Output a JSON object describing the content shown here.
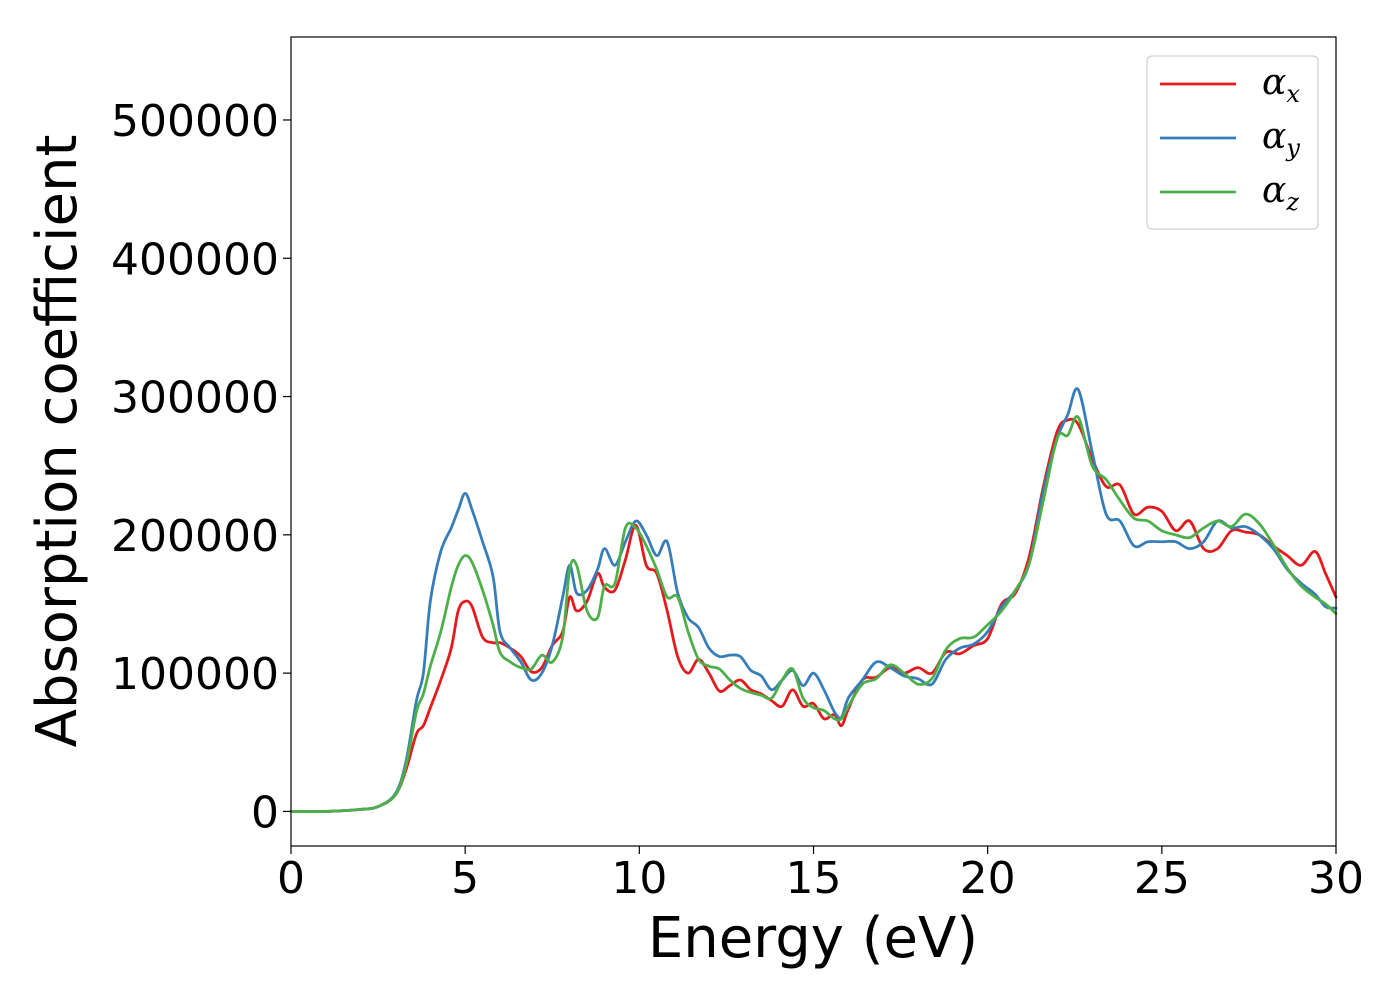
{
  "chart_data": {
    "type": "line",
    "xlabel": "Energy (eV)",
    "ylabel": "Absorption coefficient",
    "xlim": [
      0,
      30
    ],
    "ylim": [
      -25000,
      560000
    ],
    "xticks": [
      0,
      5,
      10,
      15,
      20,
      25,
      30
    ],
    "xtick_labels": [
      "0",
      "5",
      "10",
      "15",
      "20",
      "25",
      "30"
    ],
    "yticks": [
      0,
      100000,
      200000,
      300000,
      400000,
      500000
    ],
    "ytick_labels": [
      "0",
      "100000",
      "200000",
      "300000",
      "400000",
      "500000"
    ],
    "grid": false,
    "legend_position": "top-right",
    "series": [
      {
        "name": "α",
        "subscript": "x",
        "color": "#e41a1c",
        "x": [
          0,
          1,
          2,
          2.5,
          3,
          3.3,
          3.6,
          3.8,
          4.0,
          4.3,
          4.6,
          4.8,
          5.0,
          5.2,
          5.5,
          5.8,
          6.0,
          6.3,
          6.6,
          6.9,
          7.2,
          7.5,
          7.8,
          8.0,
          8.2,
          8.5,
          8.8,
          9.0,
          9.3,
          9.6,
          9.9,
          10.2,
          10.5,
          10.8,
          11.1,
          11.4,
          11.7,
          12.0,
          12.3,
          12.6,
          12.9,
          13.2,
          13.5,
          13.8,
          14.1,
          14.4,
          14.7,
          15.0,
          15.3,
          15.6,
          15.8,
          16.0,
          16.4,
          16.8,
          17.2,
          17.6,
          18.0,
          18.4,
          18.8,
          19.2,
          19.6,
          20.0,
          20.4,
          20.8,
          21.2,
          21.6,
          22.0,
          22.3,
          22.6,
          23.0,
          23.4,
          23.8,
          24.2,
          24.6,
          25.0,
          25.4,
          25.8,
          26.2,
          26.6,
          27.0,
          27.4,
          27.8,
          28.2,
          28.6,
          29.0,
          29.4,
          29.7,
          30.0
        ],
        "y": [
          0,
          0,
          1500,
          3500,
          12000,
          30000,
          56000,
          62000,
          75000,
          95000,
          118000,
          145000,
          152000,
          148000,
          126000,
          122000,
          122000,
          118000,
          112000,
          101000,
          104000,
          120000,
          130000,
          155000,
          145000,
          152000,
          172000,
          162000,
          160000,
          182000,
          207000,
          178000,
          172000,
          145000,
          112000,
          100000,
          110000,
          100000,
          87000,
          91000,
          95000,
          88000,
          85000,
          80000,
          76000,
          88000,
          76000,
          78000,
          67000,
          70000,
          62000,
          74000,
          95000,
          97000,
          104000,
          100000,
          104000,
          100000,
          115000,
          114000,
          120000,
          125000,
          150000,
          158000,
          185000,
          235000,
          275000,
          283000,
          280000,
          255000,
          235000,
          236000,
          215000,
          220000,
          217000,
          203000,
          210000,
          190000,
          190000,
          203000,
          202000,
          200000,
          192000,
          185000,
          178000,
          188000,
          172000,
          155000
        ]
      },
      {
        "name": "α",
        "subscript": "y",
        "color": "#377eb8",
        "x": [
          0,
          1,
          2,
          2.5,
          3,
          3.3,
          3.6,
          3.8,
          4.0,
          4.3,
          4.6,
          4.8,
          5.0,
          5.2,
          5.5,
          5.8,
          6.0,
          6.3,
          6.6,
          6.9,
          7.2,
          7.5,
          7.8,
          8.0,
          8.2,
          8.5,
          8.8,
          9.0,
          9.3,
          9.6,
          9.9,
          10.2,
          10.5,
          10.8,
          11.1,
          11.4,
          11.7,
          12.0,
          12.3,
          12.6,
          12.9,
          13.2,
          13.5,
          13.8,
          14.1,
          14.4,
          14.7,
          15.0,
          15.3,
          15.6,
          15.8,
          16.0,
          16.4,
          16.8,
          17.2,
          17.6,
          18.0,
          18.4,
          18.8,
          19.2,
          19.6,
          20.0,
          20.4,
          20.8,
          21.2,
          21.6,
          22.0,
          22.3,
          22.6,
          23.0,
          23.4,
          23.8,
          24.2,
          24.6,
          25.0,
          25.4,
          25.8,
          26.2,
          26.6,
          27.0,
          27.4,
          27.8,
          28.2,
          28.6,
          29.0,
          29.4,
          29.7,
          30.0
        ],
        "y": [
          0,
          0,
          1500,
          3500,
          13000,
          36000,
          80000,
          100000,
          152000,
          188000,
          205000,
          218000,
          230000,
          218000,
          195000,
          170000,
          130000,
          118000,
          108000,
          95000,
          100000,
          120000,
          155000,
          178000,
          158000,
          160000,
          175000,
          190000,
          178000,
          195000,
          210000,
          200000,
          185000,
          195000,
          158000,
          140000,
          133000,
          118000,
          112000,
          113000,
          112000,
          102000,
          98000,
          88000,
          95000,
          102000,
          91000,
          100000,
          88000,
          72000,
          68000,
          82000,
          95000,
          108000,
          104000,
          98000,
          96000,
          92000,
          110000,
          118000,
          121000,
          130000,
          148000,
          160000,
          180000,
          232000,
          270000,
          287000,
          305000,
          260000,
          215000,
          210000,
          192000,
          195000,
          195000,
          195000,
          190000,
          195000,
          210000,
          205000,
          206000,
          200000,
          190000,
          175000,
          165000,
          157000,
          148000,
          147000
        ]
      },
      {
        "name": "α",
        "subscript": "z",
        "color": "#4daf4a",
        "x": [
          0,
          1,
          2,
          2.5,
          3,
          3.3,
          3.6,
          3.8,
          4.0,
          4.3,
          4.6,
          4.8,
          5.0,
          5.2,
          5.5,
          5.8,
          6.0,
          6.3,
          6.6,
          6.9,
          7.2,
          7.5,
          7.8,
          8.0,
          8.2,
          8.5,
          8.8,
          9.0,
          9.3,
          9.6,
          9.9,
          10.2,
          10.5,
          10.8,
          11.1,
          11.4,
          11.7,
          12.0,
          12.3,
          12.6,
          12.9,
          13.2,
          13.5,
          13.8,
          14.1,
          14.4,
          14.7,
          15.0,
          15.3,
          15.6,
          15.8,
          16.0,
          16.4,
          16.8,
          17.2,
          17.6,
          18.0,
          18.4,
          18.8,
          19.2,
          19.6,
          20.0,
          20.4,
          20.8,
          21.2,
          21.6,
          22.0,
          22.3,
          22.6,
          23.0,
          23.4,
          23.8,
          24.2,
          24.6,
          25.0,
          25.4,
          25.8,
          26.2,
          26.6,
          27.0,
          27.4,
          27.8,
          28.2,
          28.6,
          29.0,
          29.4,
          29.7,
          30.0
        ],
        "y": [
          0,
          0,
          1500,
          3500,
          12000,
          33000,
          72000,
          85000,
          105000,
          130000,
          162000,
          178000,
          185000,
          180000,
          160000,
          135000,
          115000,
          108000,
          104000,
          103000,
          113000,
          108000,
          126000,
          175000,
          178000,
          145000,
          140000,
          163000,
          165000,
          205000,
          205000,
          192000,
          175000,
          155000,
          155000,
          130000,
          110000,
          105000,
          103000,
          95000,
          89000,
          86000,
          84000,
          82000,
          95000,
          103000,
          82000,
          75000,
          73000,
          67000,
          67000,
          76000,
          92000,
          96000,
          106000,
          100000,
          92000,
          96000,
          117000,
          125000,
          126000,
          135000,
          145000,
          160000,
          180000,
          225000,
          270000,
          272000,
          285000,
          250000,
          240000,
          225000,
          212000,
          210000,
          203000,
          200000,
          198000,
          205000,
          210000,
          206000,
          215000,
          208000,
          193000,
          176000,
          163000,
          155000,
          150000,
          143000
        ]
      }
    ]
  }
}
